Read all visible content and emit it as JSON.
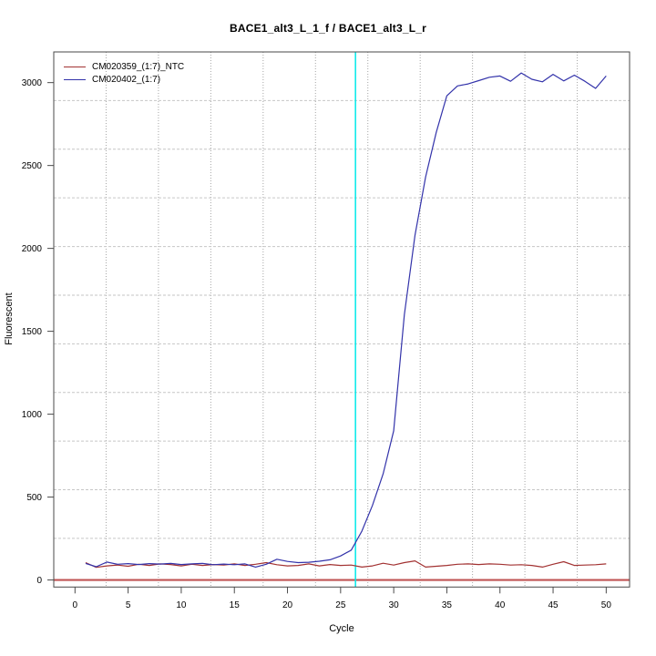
{
  "title": "BACE1_alt3_L_1_f / BACE1_alt3_L_r",
  "chart_data": {
    "type": "line",
    "title": "BACE1_alt3_L_1_f / BACE1_alt3_L_r",
    "xlabel": "Cycle",
    "ylabel": "Fluorescent",
    "xlim": [
      -2.0,
      52.2
    ],
    "ylim": [
      -42.5,
      3185
    ],
    "x_ticks": [
      0,
      5,
      10,
      15,
      20,
      25,
      30,
      35,
      40,
      45,
      50
    ],
    "y_ticks": [
      0,
      500,
      1000,
      1500,
      2000,
      2500,
      3000
    ],
    "grid": {
      "nx": 11,
      "ny": 11,
      "line_style": "dotted",
      "color_vertical": "#a6a6a6",
      "color_horizontal": "#c6c6c6"
    },
    "legend_position": "top-left",
    "x": [
      1,
      2,
      3,
      4,
      5,
      6,
      7,
      8,
      9,
      10,
      11,
      12,
      13,
      14,
      15,
      16,
      17,
      18,
      19,
      20,
      21,
      22,
      23,
      24,
      25,
      26,
      27,
      28,
      29,
      30,
      31,
      32,
      33,
      34,
      35,
      36,
      37,
      38,
      39,
      40,
      41,
      42,
      43,
      44,
      45,
      46,
      47,
      48,
      49,
      50
    ],
    "series": [
      {
        "name": "CM020359_(1:7)_NTC",
        "color": "#a23232",
        "values": [
          105,
          76,
          85,
          90,
          83,
          95,
          88,
          97,
          93,
          85,
          95,
          88,
          93,
          90,
          97,
          88,
          95,
          105,
          92,
          85,
          88,
          97,
          85,
          93,
          88,
          90,
          78,
          85,
          101,
          90,
          105,
          115,
          78,
          83,
          88,
          95,
          97,
          93,
          97,
          95,
          90,
          92,
          88,
          78,
          95,
          110,
          88,
          90,
          92,
          97
        ]
      },
      {
        "name": "CM020402_(1:7)",
        "color": "#3333aa",
        "values": [
          100,
          80,
          108,
          95,
          99,
          93,
          99,
          96,
          100,
          93,
          97,
          100,
          92,
          96,
          92,
          97,
          78,
          95,
          125,
          112,
          105,
          107,
          113,
          122,
          145,
          180,
          295,
          450,
          640,
          900,
          1600,
          2080,
          2430,
          2700,
          2920,
          2980,
          2992,
          3012,
          3032,
          3040,
          3008,
          3058,
          3020,
          3005,
          3050,
          3010,
          3045,
          3008,
          2965,
          3040
        ]
      }
    ],
    "annotations": {
      "vline": {
        "x": 26.4,
        "color": "#00e8e8",
        "label": "threshold-crossing-cycle"
      },
      "hline": {
        "y": 0,
        "color": "#c05555",
        "label": "baseline"
      }
    }
  }
}
